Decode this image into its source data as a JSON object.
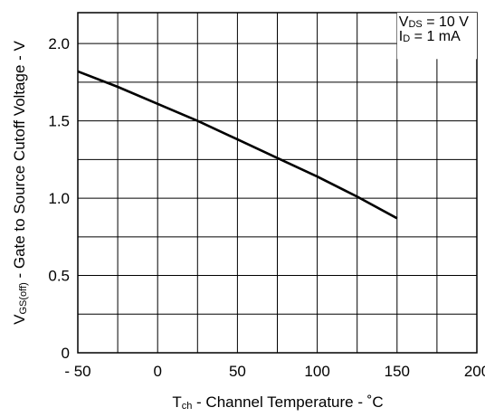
{
  "chart_data": {
    "type": "line",
    "title": "",
    "xlabel": {
      "symbol": "T",
      "subscript": "ch",
      "text": " -  Channel Temperature  -  ˚C"
    },
    "ylabel": {
      "symbol": "V",
      "subscript": "GS(off)",
      "text": " -  Gate to Source Cutoff Voltage  -  V"
    },
    "xlim": [
      -50,
      200
    ],
    "ylim": [
      0,
      2.0
    ],
    "ydisplay_max": 2.2,
    "xticks": [
      -50,
      0,
      50,
      100,
      150,
      200
    ],
    "xtick_labels": [
      "- 50",
      "0",
      "50",
      "100",
      "150",
      "200"
    ],
    "yticks": [
      0,
      0.5,
      1.0,
      1.5,
      2.0
    ],
    "ytick_labels": [
      "0",
      "0.5",
      "1.0",
      "1.5",
      "2.0"
    ],
    "grid": true,
    "grid_x_step": 25,
    "grid_y_step": 0.25,
    "annotations": [
      {
        "symbol": "V",
        "subscript": "DS",
        "text": " = 10 V"
      },
      {
        "symbol": "I",
        "subscript": "D",
        "text": " = 1 mA"
      }
    ],
    "series": [
      {
        "x": [
          -50,
          -25,
          0,
          25,
          50,
          75,
          100,
          125,
          150
        ],
        "y": [
          1.82,
          1.72,
          1.61,
          1.5,
          1.38,
          1.26,
          1.14,
          1.01,
          0.87
        ]
      }
    ],
    "colors": {
      "line": "#000000",
      "grid": "#000000"
    }
  }
}
